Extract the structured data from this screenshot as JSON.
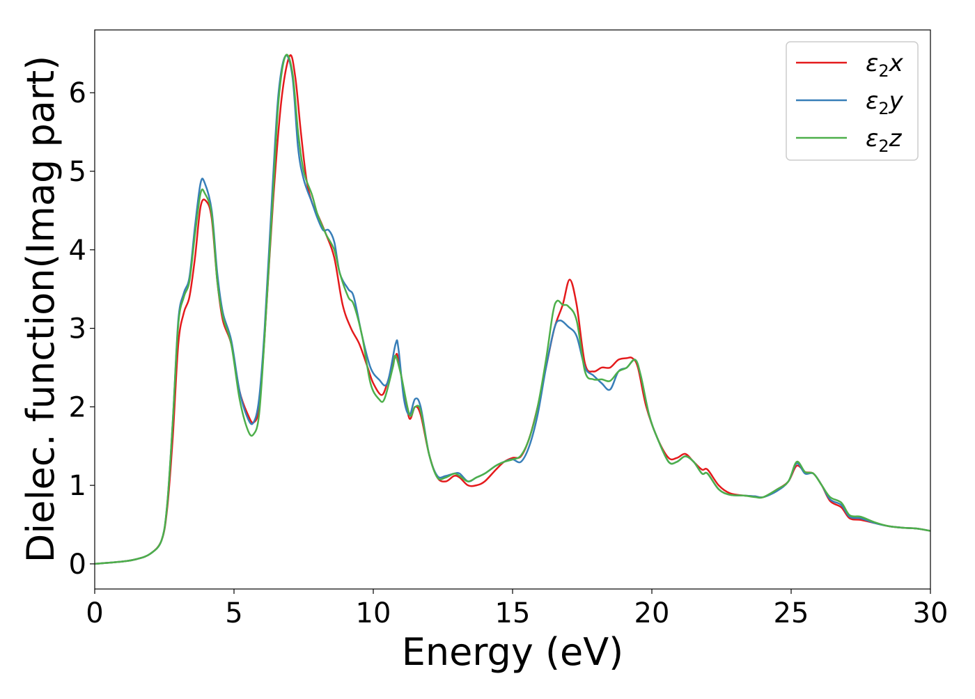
{
  "chart_data": {
    "type": "line",
    "xlabel": "Energy (eV)",
    "ylabel": "Dielec. function(Imag part)",
    "xlim": [
      0,
      30
    ],
    "ylim": [
      -0.32,
      6.8
    ],
    "xticks": [
      0,
      5,
      10,
      15,
      20,
      25,
      30
    ],
    "yticks": [
      0,
      1,
      2,
      3,
      4,
      5,
      6
    ],
    "xtick_labels": [
      "0",
      "5",
      "10",
      "15",
      "20",
      "25",
      "30"
    ],
    "ytick_labels": [
      "0",
      "1",
      "2",
      "3",
      "4",
      "5",
      "6"
    ],
    "grid": false,
    "legend_position": "top-right",
    "series": [
      {
        "name": "ε₂x",
        "legend_base": "ε",
        "legend_sub": "2",
        "legend_tail": "x",
        "color": "#e41a1c",
        "points": [
          [
            0,
            0
          ],
          [
            1,
            0.03
          ],
          [
            1.5,
            0.06
          ],
          [
            2,
            0.13
          ],
          [
            2.4,
            0.3
          ],
          [
            2.6,
            0.7
          ],
          [
            2.8,
            1.6
          ],
          [
            3.0,
            2.8
          ],
          [
            3.2,
            3.2
          ],
          [
            3.4,
            3.4
          ],
          [
            3.6,
            3.9
          ],
          [
            3.8,
            4.55
          ],
          [
            4.0,
            4.62
          ],
          [
            4.2,
            4.4
          ],
          [
            4.4,
            3.6
          ],
          [
            4.6,
            3.1
          ],
          [
            4.9,
            2.8
          ],
          [
            5.2,
            2.2
          ],
          [
            5.5,
            1.9
          ],
          [
            5.7,
            1.8
          ],
          [
            5.9,
            2.0
          ],
          [
            6.1,
            2.9
          ],
          [
            6.4,
            4.6
          ],
          [
            6.7,
            5.9
          ],
          [
            7.0,
            6.47
          ],
          [
            7.2,
            6.2
          ],
          [
            7.4,
            5.5
          ],
          [
            7.6,
            4.9
          ],
          [
            7.8,
            4.6
          ],
          [
            8.0,
            4.45
          ],
          [
            8.3,
            4.2
          ],
          [
            8.6,
            3.9
          ],
          [
            8.9,
            3.3
          ],
          [
            9.2,
            3.0
          ],
          [
            9.5,
            2.8
          ],
          [
            9.8,
            2.5
          ],
          [
            10.0,
            2.3
          ],
          [
            10.3,
            2.15
          ],
          [
            10.5,
            2.3
          ],
          [
            10.8,
            2.65
          ],
          [
            10.9,
            2.6
          ],
          [
            11.1,
            2.2
          ],
          [
            11.3,
            1.85
          ],
          [
            11.5,
            2.0
          ],
          [
            11.7,
            1.9
          ],
          [
            12.0,
            1.4
          ],
          [
            12.3,
            1.1
          ],
          [
            12.6,
            1.05
          ],
          [
            12.9,
            1.12
          ],
          [
            13.1,
            1.1
          ],
          [
            13.4,
            1.0
          ],
          [
            13.7,
            1.0
          ],
          [
            14.0,
            1.05
          ],
          [
            14.4,
            1.2
          ],
          [
            14.7,
            1.3
          ],
          [
            15.0,
            1.35
          ],
          [
            15.3,
            1.37
          ],
          [
            15.6,
            1.6
          ],
          [
            15.9,
            2.0
          ],
          [
            16.2,
            2.5
          ],
          [
            16.5,
            3.0
          ],
          [
            16.8,
            3.3
          ],
          [
            17.05,
            3.62
          ],
          [
            17.3,
            3.3
          ],
          [
            17.6,
            2.55
          ],
          [
            17.9,
            2.45
          ],
          [
            18.2,
            2.5
          ],
          [
            18.5,
            2.5
          ],
          [
            18.8,
            2.6
          ],
          [
            19.1,
            2.62
          ],
          [
            19.3,
            2.62
          ],
          [
            19.5,
            2.5
          ],
          [
            19.8,
            2.0
          ],
          [
            20.2,
            1.6
          ],
          [
            20.6,
            1.35
          ],
          [
            20.9,
            1.35
          ],
          [
            21.2,
            1.4
          ],
          [
            21.5,
            1.3
          ],
          [
            21.8,
            1.2
          ],
          [
            22.0,
            1.2
          ],
          [
            22.4,
            1.0
          ],
          [
            22.8,
            0.9
          ],
          [
            23.3,
            0.87
          ],
          [
            23.7,
            0.86
          ],
          [
            24.0,
            0.85
          ],
          [
            24.5,
            0.95
          ],
          [
            24.9,
            1.05
          ],
          [
            25.2,
            1.25
          ],
          [
            25.5,
            1.17
          ],
          [
            25.8,
            1.15
          ],
          [
            26.1,
            1.0
          ],
          [
            26.4,
            0.8
          ],
          [
            26.8,
            0.72
          ],
          [
            27.1,
            0.58
          ],
          [
            27.5,
            0.56
          ],
          [
            28.0,
            0.52
          ],
          [
            28.5,
            0.48
          ],
          [
            29.0,
            0.46
          ],
          [
            29.5,
            0.45
          ],
          [
            30.0,
            0.42
          ]
        ]
      },
      {
        "name": "ε₂y",
        "legend_base": "ε",
        "legend_sub": "2",
        "legend_tail": "y",
        "color": "#377eb8",
        "points": [
          [
            0,
            0
          ],
          [
            1,
            0.03
          ],
          [
            1.5,
            0.06
          ],
          [
            2,
            0.13
          ],
          [
            2.4,
            0.3
          ],
          [
            2.6,
            0.75
          ],
          [
            2.8,
            1.8
          ],
          [
            3.0,
            3.1
          ],
          [
            3.2,
            3.45
          ],
          [
            3.4,
            3.65
          ],
          [
            3.6,
            4.3
          ],
          [
            3.8,
            4.85
          ],
          [
            3.95,
            4.85
          ],
          [
            4.2,
            4.5
          ],
          [
            4.4,
            3.7
          ],
          [
            4.6,
            3.2
          ],
          [
            4.9,
            2.85
          ],
          [
            5.2,
            2.2
          ],
          [
            5.5,
            1.85
          ],
          [
            5.7,
            1.8
          ],
          [
            5.9,
            2.1
          ],
          [
            6.1,
            3.0
          ],
          [
            6.4,
            4.9
          ],
          [
            6.6,
            6.0
          ],
          [
            6.85,
            6.47
          ],
          [
            7.1,
            6.2
          ],
          [
            7.3,
            5.3
          ],
          [
            7.5,
            4.9
          ],
          [
            7.8,
            4.6
          ],
          [
            8.0,
            4.4
          ],
          [
            8.2,
            4.25
          ],
          [
            8.4,
            4.25
          ],
          [
            8.6,
            4.1
          ],
          [
            8.8,
            3.7
          ],
          [
            9.1,
            3.5
          ],
          [
            9.3,
            3.4
          ],
          [
            9.6,
            2.9
          ],
          [
            9.9,
            2.5
          ],
          [
            10.2,
            2.35
          ],
          [
            10.5,
            2.3
          ],
          [
            10.8,
            2.8
          ],
          [
            10.9,
            2.75
          ],
          [
            11.1,
            2.1
          ],
          [
            11.3,
            1.9
          ],
          [
            11.5,
            2.1
          ],
          [
            11.7,
            2.0
          ],
          [
            12.0,
            1.4
          ],
          [
            12.3,
            1.12
          ],
          [
            12.6,
            1.12
          ],
          [
            12.9,
            1.15
          ],
          [
            13.1,
            1.15
          ],
          [
            13.4,
            1.05
          ],
          [
            13.7,
            1.1
          ],
          [
            14.0,
            1.15
          ],
          [
            14.4,
            1.25
          ],
          [
            14.7,
            1.3
          ],
          [
            15.0,
            1.33
          ],
          [
            15.3,
            1.3
          ],
          [
            15.6,
            1.5
          ],
          [
            15.9,
            1.9
          ],
          [
            16.2,
            2.5
          ],
          [
            16.5,
            3.0
          ],
          [
            16.7,
            3.1
          ],
          [
            17.0,
            3.02
          ],
          [
            17.3,
            2.9
          ],
          [
            17.6,
            2.5
          ],
          [
            17.9,
            2.4
          ],
          [
            18.2,
            2.3
          ],
          [
            18.5,
            2.22
          ],
          [
            18.8,
            2.45
          ],
          [
            19.1,
            2.5
          ],
          [
            19.4,
            2.6
          ],
          [
            19.6,
            2.4
          ],
          [
            19.9,
            1.9
          ],
          [
            20.2,
            1.6
          ],
          [
            20.6,
            1.3
          ],
          [
            20.9,
            1.3
          ],
          [
            21.2,
            1.37
          ],
          [
            21.5,
            1.3
          ],
          [
            21.8,
            1.15
          ],
          [
            22.0,
            1.15
          ],
          [
            22.4,
            0.95
          ],
          [
            22.8,
            0.88
          ],
          [
            23.3,
            0.87
          ],
          [
            23.7,
            0.86
          ],
          [
            24.0,
            0.85
          ],
          [
            24.5,
            0.93
          ],
          [
            24.9,
            1.05
          ],
          [
            25.2,
            1.28
          ],
          [
            25.5,
            1.15
          ],
          [
            25.8,
            1.15
          ],
          [
            26.1,
            1.0
          ],
          [
            26.4,
            0.82
          ],
          [
            26.8,
            0.75
          ],
          [
            27.1,
            0.6
          ],
          [
            27.5,
            0.58
          ],
          [
            28.0,
            0.52
          ],
          [
            28.5,
            0.48
          ],
          [
            29.0,
            0.46
          ],
          [
            29.5,
            0.45
          ],
          [
            30.0,
            0.42
          ]
        ]
      },
      {
        "name": "ε₂z",
        "legend_base": "ε",
        "legend_sub": "2",
        "legend_tail": "z",
        "color": "#4daf4a",
        "points": [
          [
            0,
            0
          ],
          [
            1,
            0.03
          ],
          [
            1.5,
            0.06
          ],
          [
            2,
            0.13
          ],
          [
            2.4,
            0.3
          ],
          [
            2.6,
            0.75
          ],
          [
            2.8,
            1.8
          ],
          [
            3.0,
            3.05
          ],
          [
            3.2,
            3.4
          ],
          [
            3.4,
            3.6
          ],
          [
            3.6,
            4.2
          ],
          [
            3.8,
            4.72
          ],
          [
            3.95,
            4.72
          ],
          [
            4.2,
            4.45
          ],
          [
            4.4,
            3.6
          ],
          [
            4.6,
            3.15
          ],
          [
            4.9,
            2.8
          ],
          [
            5.2,
            2.1
          ],
          [
            5.5,
            1.7
          ],
          [
            5.7,
            1.65
          ],
          [
            5.9,
            1.9
          ],
          [
            6.1,
            2.9
          ],
          [
            6.4,
            4.7
          ],
          [
            6.6,
            5.9
          ],
          [
            6.85,
            6.47
          ],
          [
            7.1,
            6.25
          ],
          [
            7.3,
            5.5
          ],
          [
            7.5,
            5.0
          ],
          [
            7.8,
            4.7
          ],
          [
            8.0,
            4.45
          ],
          [
            8.3,
            4.2
          ],
          [
            8.6,
            4.0
          ],
          [
            8.8,
            3.7
          ],
          [
            9.1,
            3.4
          ],
          [
            9.3,
            3.3
          ],
          [
            9.6,
            2.9
          ],
          [
            9.9,
            2.3
          ],
          [
            10.2,
            2.1
          ],
          [
            10.4,
            2.1
          ],
          [
            10.7,
            2.5
          ],
          [
            10.8,
            2.65
          ],
          [
            11.0,
            2.4
          ],
          [
            11.3,
            1.9
          ],
          [
            11.5,
            2.0
          ],
          [
            11.7,
            1.95
          ],
          [
            12.0,
            1.4
          ],
          [
            12.3,
            1.1
          ],
          [
            12.6,
            1.1
          ],
          [
            12.9,
            1.15
          ],
          [
            13.1,
            1.12
          ],
          [
            13.4,
            1.05
          ],
          [
            13.7,
            1.1
          ],
          [
            14.0,
            1.15
          ],
          [
            14.4,
            1.25
          ],
          [
            14.7,
            1.3
          ],
          [
            15.0,
            1.33
          ],
          [
            15.3,
            1.38
          ],
          [
            15.6,
            1.6
          ],
          [
            15.9,
            2.0
          ],
          [
            16.2,
            2.6
          ],
          [
            16.45,
            3.2
          ],
          [
            16.6,
            3.35
          ],
          [
            16.8,
            3.3
          ],
          [
            17.0,
            3.28
          ],
          [
            17.3,
            3.1
          ],
          [
            17.6,
            2.45
          ],
          [
            17.9,
            2.35
          ],
          [
            18.2,
            2.35
          ],
          [
            18.5,
            2.33
          ],
          [
            18.8,
            2.45
          ],
          [
            19.1,
            2.5
          ],
          [
            19.4,
            2.6
          ],
          [
            19.6,
            2.4
          ],
          [
            19.9,
            1.9
          ],
          [
            20.2,
            1.6
          ],
          [
            20.6,
            1.3
          ],
          [
            20.9,
            1.3
          ],
          [
            21.2,
            1.37
          ],
          [
            21.5,
            1.3
          ],
          [
            21.8,
            1.15
          ],
          [
            22.0,
            1.15
          ],
          [
            22.4,
            0.95
          ],
          [
            22.8,
            0.88
          ],
          [
            23.3,
            0.87
          ],
          [
            23.7,
            0.85
          ],
          [
            24.0,
            0.85
          ],
          [
            24.5,
            0.95
          ],
          [
            24.9,
            1.05
          ],
          [
            25.2,
            1.3
          ],
          [
            25.5,
            1.17
          ],
          [
            25.8,
            1.15
          ],
          [
            26.1,
            1.0
          ],
          [
            26.4,
            0.85
          ],
          [
            26.8,
            0.78
          ],
          [
            27.1,
            0.62
          ],
          [
            27.5,
            0.6
          ],
          [
            28.0,
            0.53
          ],
          [
            28.5,
            0.48
          ],
          [
            29.0,
            0.46
          ],
          [
            29.5,
            0.45
          ],
          [
            30.0,
            0.42
          ]
        ]
      }
    ]
  }
}
